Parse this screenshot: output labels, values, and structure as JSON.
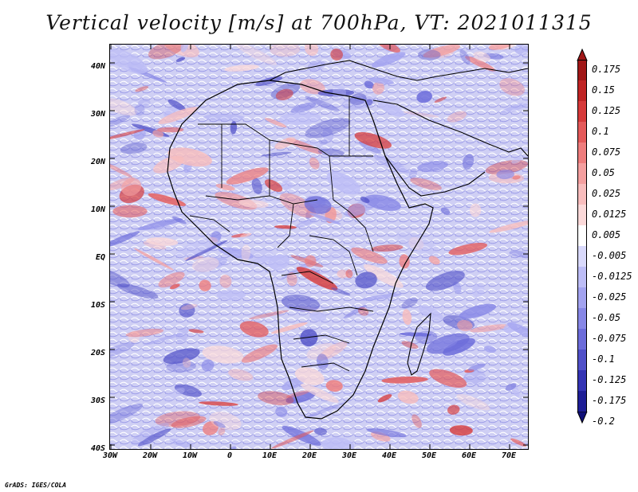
{
  "title": "Vertical velocity [m/s] at 700hPa, VT: 2021011315",
  "footer": "GrADS: IGES/COLA",
  "map": {
    "variable": "Vertical velocity",
    "units": "m/s",
    "level": "700hPa",
    "valid_time": "2021011315",
    "lat_labels": [
      "40N",
      "30N",
      "20N",
      "10N",
      "EQ",
      "10S",
      "20S",
      "30S",
      "40S"
    ],
    "lon_labels": [
      "30W",
      "20W",
      "10W",
      "0",
      "10E",
      "20E",
      "30E",
      "40E",
      "50E",
      "60E",
      "70E"
    ]
  },
  "colorbar": {
    "levels": [
      "0.175",
      "0.15",
      "0.125",
      "0.1",
      "0.075",
      "0.05",
      "0.025",
      "0.0125",
      "0.005",
      "-0.005",
      "-0.0125",
      "-0.025",
      "-0.05",
      "-0.075",
      "-0.1",
      "-0.125",
      "-0.175",
      "-0.2"
    ],
    "colors": [
      "#a01717",
      "#bf2424",
      "#d63a3a",
      "#e45a5a",
      "#ee7d7d",
      "#f49f9f",
      "#f8bdbd",
      "#fbd9d9",
      "#ffffff",
      "#d9d9fb",
      "#bdbdf6",
      "#a3a3f0",
      "#8787e6",
      "#6c6cda",
      "#5050c8",
      "#3434b4",
      "#1e1e96",
      "#0f0f78"
    ]
  }
}
